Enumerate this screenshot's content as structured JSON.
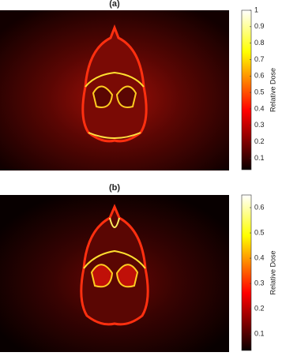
{
  "chart_data": [
    {
      "type": "heatmap",
      "title": "(a)",
      "colorbar_label": "Relative Dose",
      "clim": [
        0.03,
        1
      ],
      "cticks": [
        0.1,
        0.2,
        0.3,
        0.4,
        0.5,
        0.6,
        0.7,
        0.8,
        0.9,
        1
      ]
    },
    {
      "type": "heatmap",
      "title": "(b)",
      "colorbar_label": "Relative Dose",
      "clim": [
        0.035,
        0.65
      ],
      "cticks": [
        0.1,
        0.2,
        0.3,
        0.4,
        0.5,
        0.6
      ]
    }
  ]
}
